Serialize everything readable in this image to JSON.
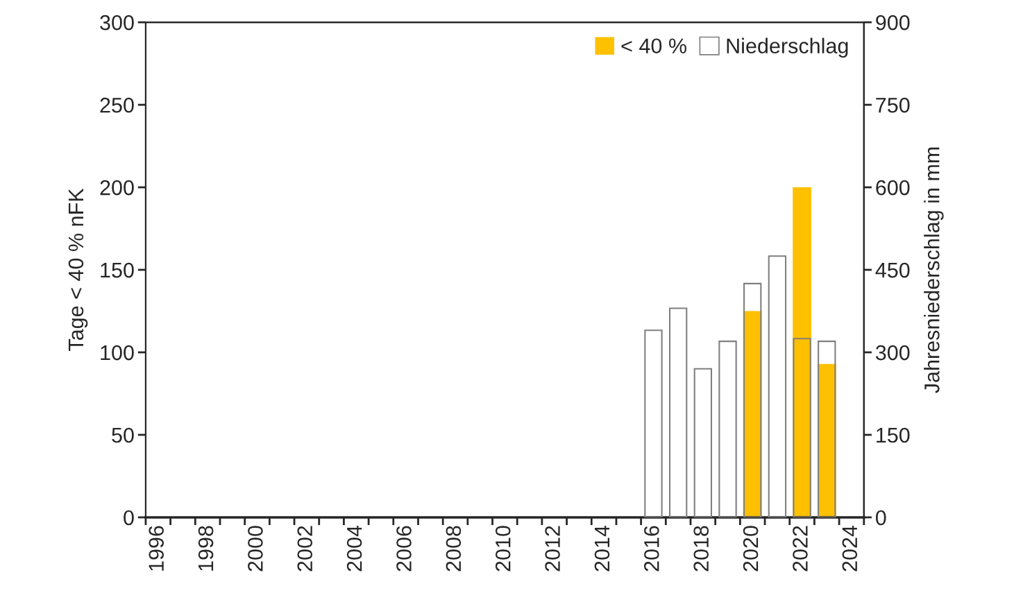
{
  "chart_data": {
    "type": "bar",
    "ylabel": "Tage < 40 % nFK",
    "y2label": "Jahresniederschlag in mm",
    "categories": [
      "1996",
      null,
      "1998",
      null,
      "2000",
      null,
      "2002",
      null,
      "2004",
      null,
      "2006",
      null,
      "2008",
      null,
      "2010",
      null,
      "2012",
      null,
      "2014",
      null,
      "2016",
      null,
      "2018",
      null,
      "2020",
      null,
      "2022",
      null,
      "2024"
    ],
    "series": [
      {
        "name": "< 40 %",
        "color": "#ffc000",
        "values": [
          null,
          null,
          null,
          null,
          null,
          null,
          null,
          null,
          null,
          null,
          null,
          null,
          null,
          null,
          null,
          null,
          null,
          null,
          null,
          null,
          null,
          null,
          null,
          null,
          125,
          null,
          200,
          93,
          null
        ]
      },
      {
        "name": "Niederschlag",
        "color": "#7f7f7f",
        "axis": "y2",
        "values": [
          null,
          null,
          null,
          null,
          null,
          null,
          null,
          null,
          null,
          null,
          null,
          null,
          null,
          null,
          null,
          null,
          null,
          null,
          null,
          null,
          340,
          380,
          270,
          320,
          425,
          475,
          325,
          320,
          null
        ]
      }
    ],
    "ylim": [
      0,
      300
    ],
    "yticks": [
      0,
      50,
      100,
      150,
      200,
      250,
      300
    ],
    "y2lim": [
      0,
      900
    ],
    "y2ticks": [
      0,
      150,
      300,
      450,
      600,
      750,
      900
    ],
    "legend": "top right",
    "grid": false
  }
}
